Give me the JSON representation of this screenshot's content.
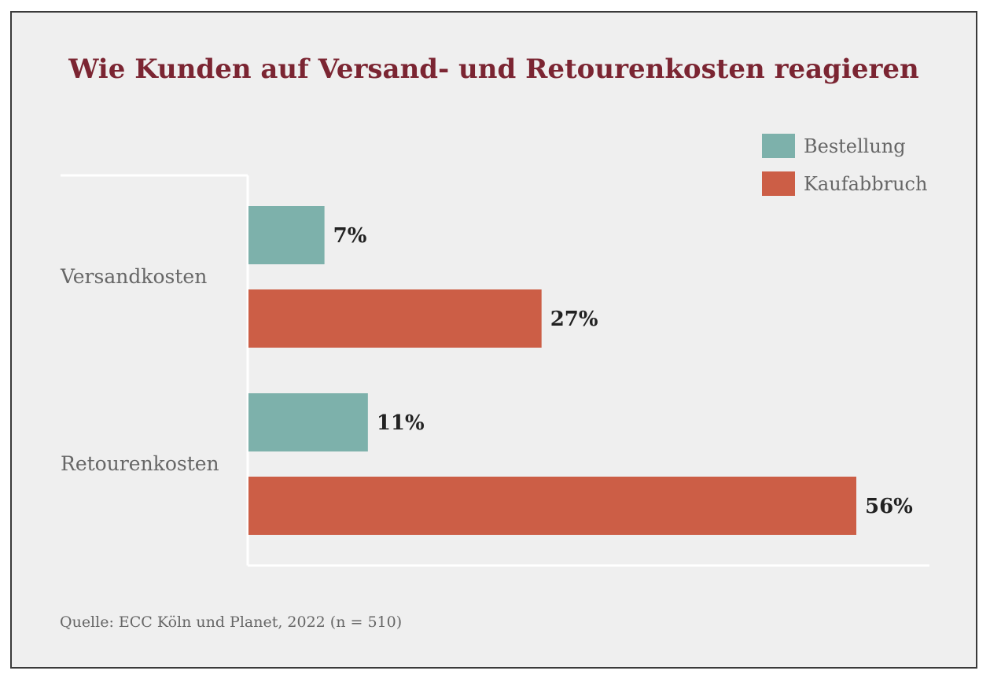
{
  "chart_data": {
    "type": "bar",
    "orientation": "horizontal",
    "title": "Wie Kunden auf Versand- und Retourenkosten reagieren",
    "categories": [
      "Versandkosten",
      "Retourenkosten"
    ],
    "series": [
      {
        "name": "Bestellung",
        "values": [
          7,
          11
        ],
        "labels": [
          "7%",
          "11%"
        ],
        "color": "#7db1ab"
      },
      {
        "name": "Kaufabbruch",
        "values": [
          27,
          56
        ],
        "labels": [
          "27%",
          "56%"
        ],
        "color": "#cc5e46"
      }
    ],
    "xlim": [
      0,
      63
    ],
    "grid": false,
    "legend": "top-right",
    "source": "Quelle: ECC Köln und Planet, 2022 (n = 510)"
  },
  "colors": {
    "title": "#7b2532",
    "background": "#efefef",
    "axis": "#ffffff",
    "category_text": "#666666",
    "value_text": "#222222"
  }
}
